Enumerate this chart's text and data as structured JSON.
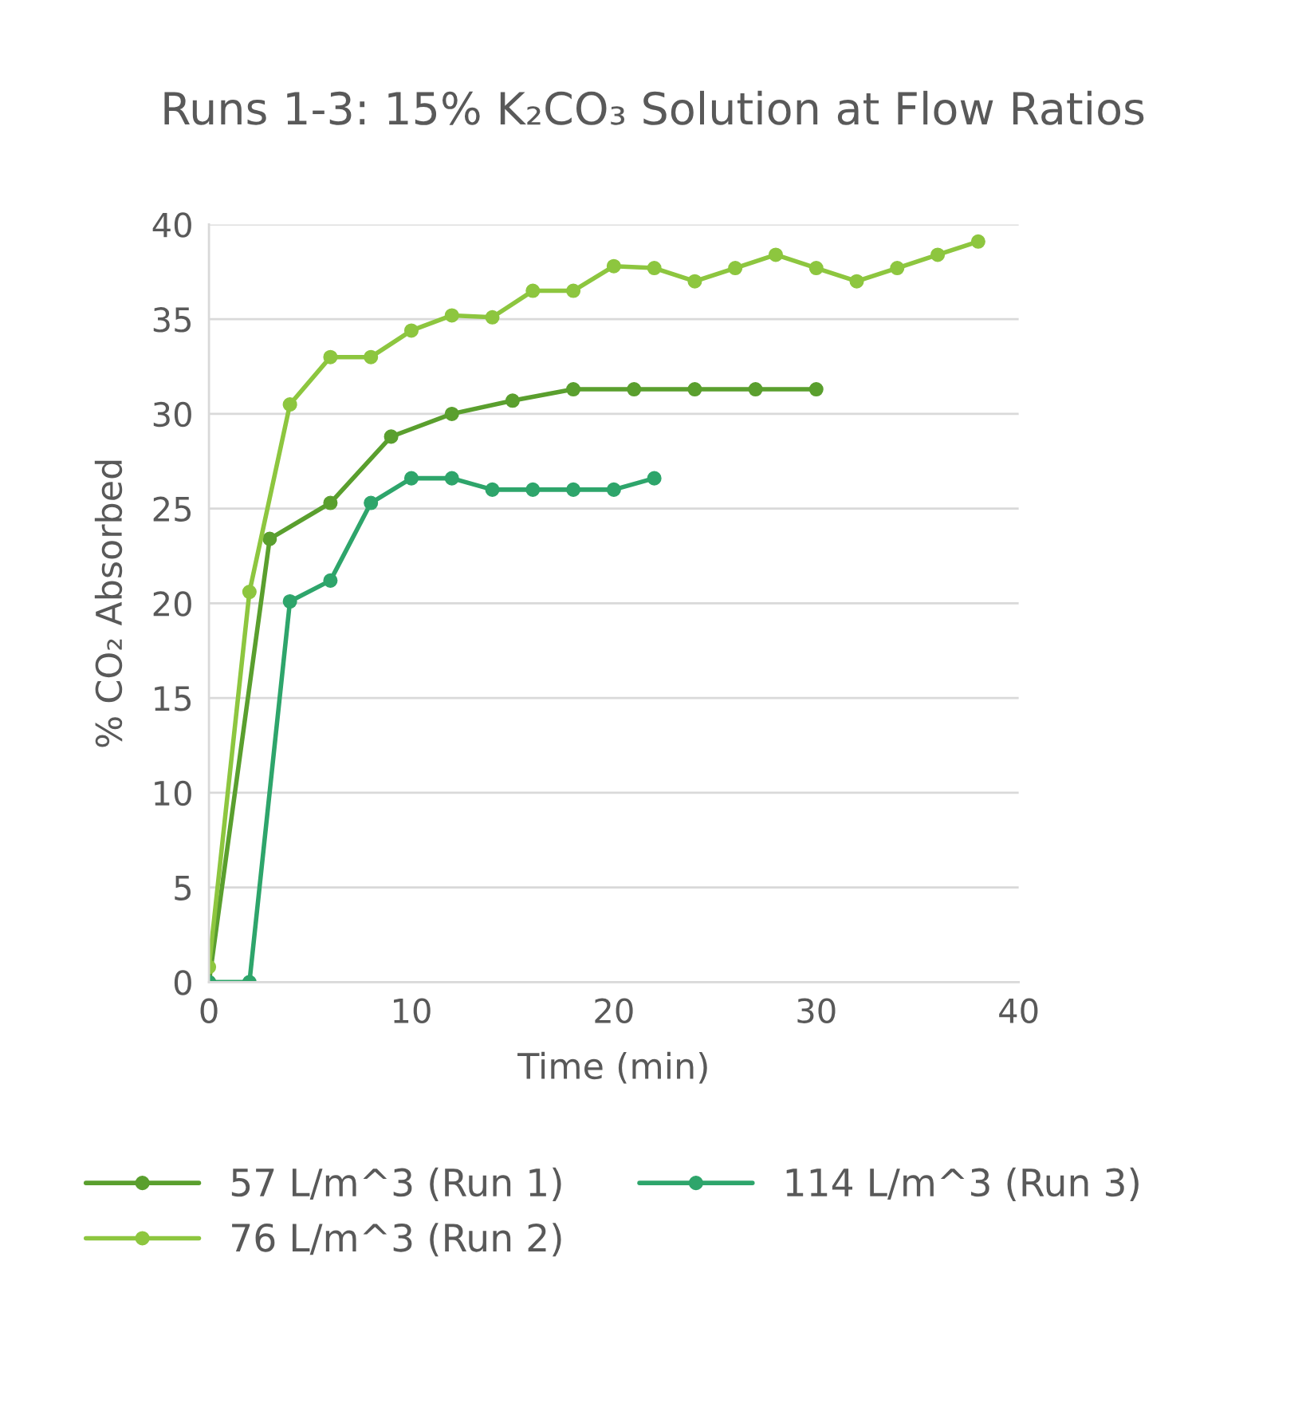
{
  "chart_data": {
    "type": "line",
    "title": "Runs 1-3: 15% K₂CO₃ Solution at Flow Ratios",
    "xlabel": "Time (min)",
    "ylabel": "% CO₂ Absorbed",
    "xlim": [
      0,
      40
    ],
    "xticks": [
      0,
      10,
      20,
      30,
      40
    ],
    "ylim": [
      0,
      40
    ],
    "yticks": [
      0,
      5,
      10,
      15,
      20,
      25,
      30,
      35,
      40
    ],
    "grid": "y",
    "legend": "bottom",
    "marker": "circle",
    "line_style": "solid",
    "series": [
      {
        "name": "57 L/m^3 (Run 1)",
        "color": "#5a9f2e",
        "x": [
          0,
          3,
          6,
          9,
          12,
          15,
          18,
          21,
          24,
          27,
          30
        ],
        "values": [
          0,
          23.4,
          25.3,
          28.8,
          30.0,
          30.7,
          31.3,
          31.3,
          31.3,
          31.3,
          31.3
        ]
      },
      {
        "name": "76 L/m^3 (Run 2)",
        "color": "#8dc63f",
        "x": [
          0,
          2,
          4,
          6,
          8,
          10,
          12,
          14,
          16,
          18,
          20,
          22,
          24,
          26,
          28,
          30,
          32,
          34,
          36,
          38
        ],
        "values": [
          0.8,
          20.6,
          30.5,
          33.0,
          33.0,
          34.4,
          35.2,
          35.1,
          36.5,
          36.5,
          37.8,
          37.7,
          37.0,
          37.7,
          38.4,
          37.7,
          37.0,
          37.7,
          38.4,
          39.1
        ]
      },
      {
        "name": "114 L/m^3 (Run 3)",
        "color": "#2ea56b",
        "x": [
          0,
          2,
          4,
          6,
          8,
          10,
          12,
          14,
          16,
          18,
          20,
          22
        ],
        "values": [
          0,
          0,
          20.1,
          21.2,
          25.3,
          26.6,
          26.6,
          26.0,
          26.0,
          26.0,
          26.0,
          26.6
        ]
      }
    ]
  }
}
